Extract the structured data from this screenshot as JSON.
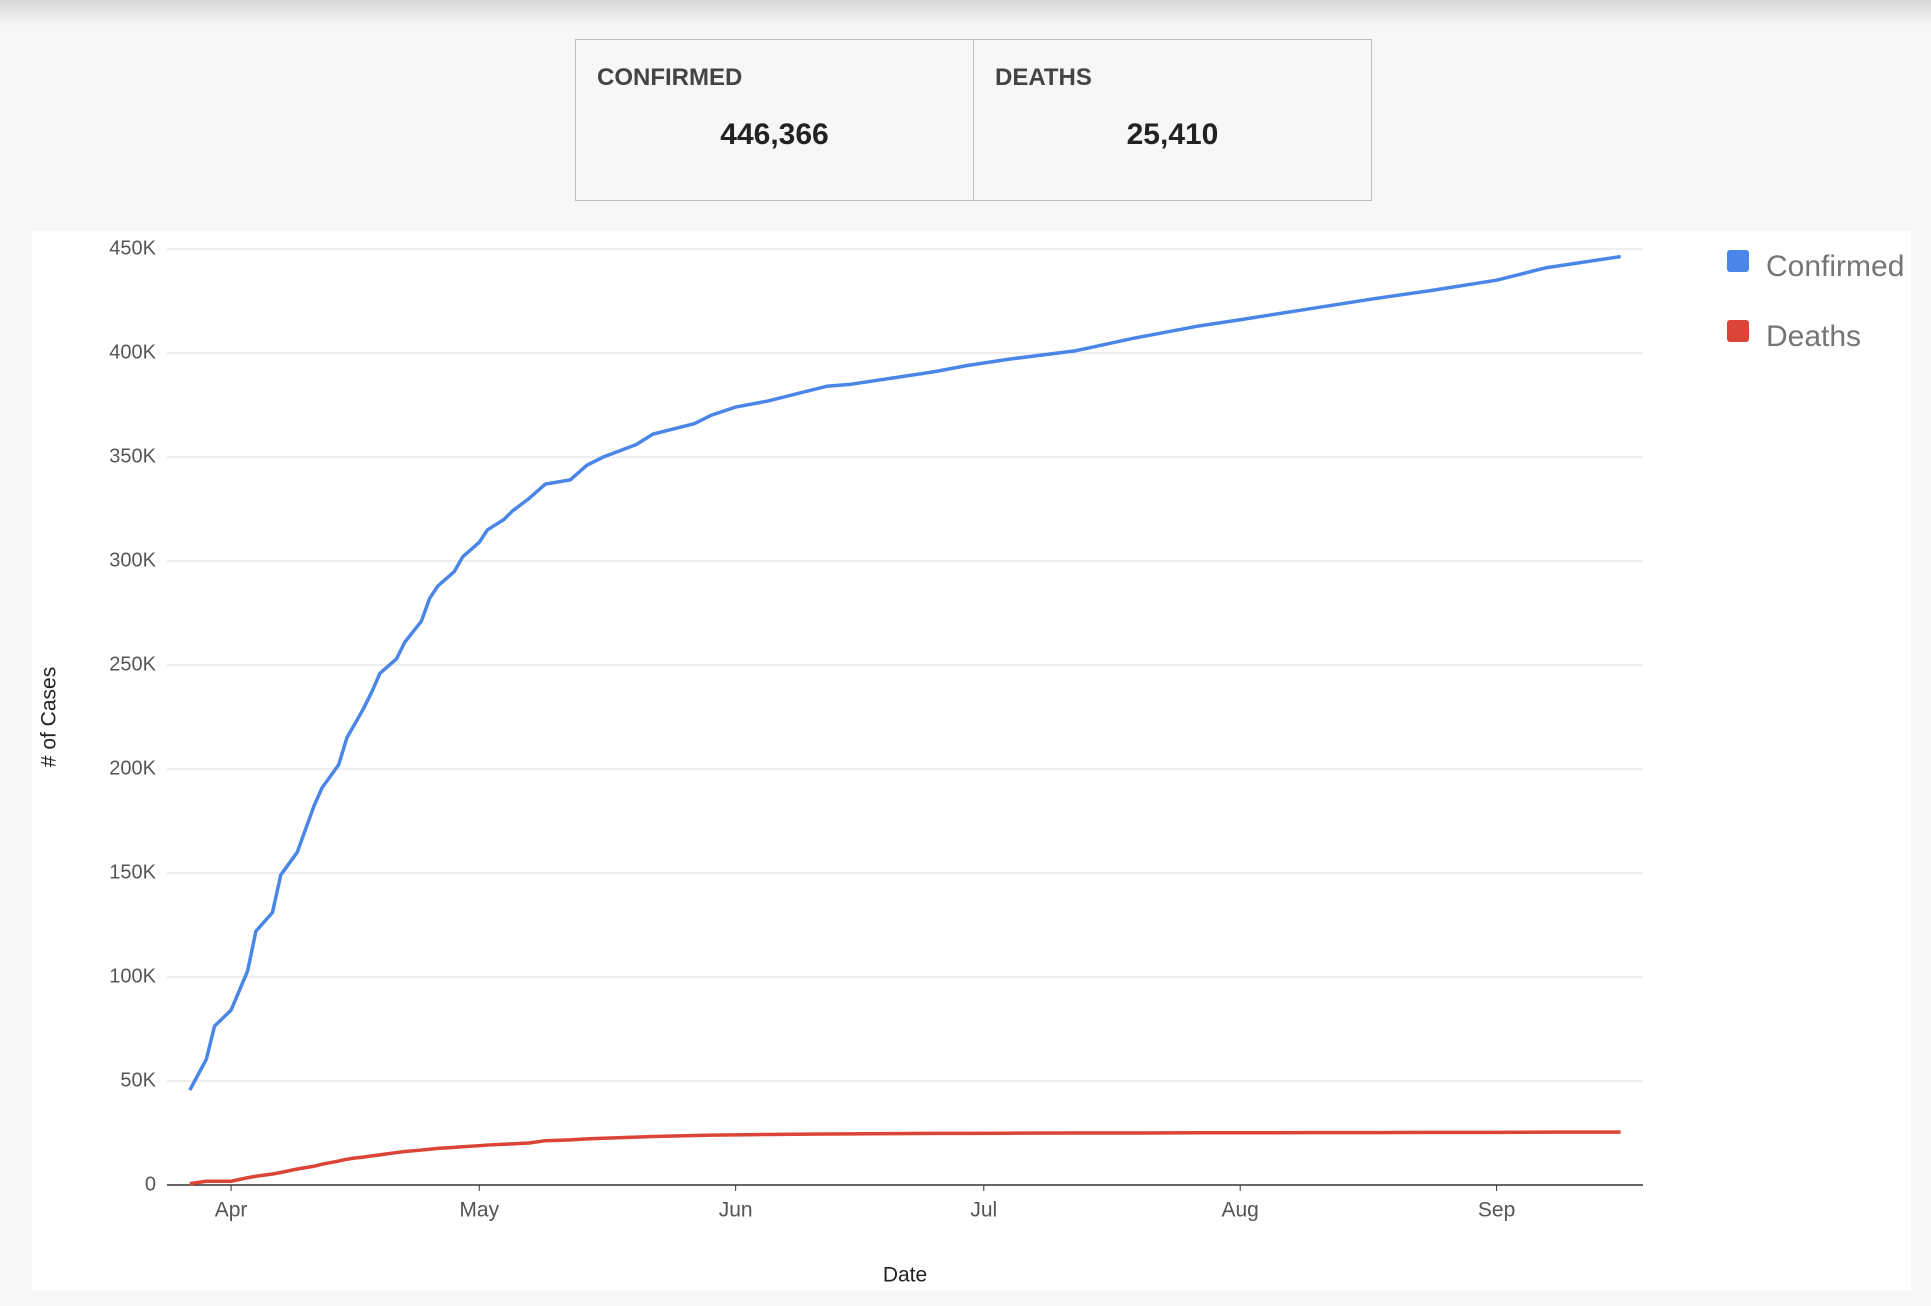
{
  "cards": [
    {
      "label": "CONFIRMED",
      "value": "446,366"
    },
    {
      "label": "DEATHS",
      "value": "25,410"
    }
  ],
  "chart_data": {
    "type": "line",
    "x_label": "Date",
    "y_label": "# of Cases",
    "x": [
      87,
      89,
      90,
      92,
      94,
      95,
      97,
      98,
      100,
      102,
      103,
      105,
      106,
      107,
      108,
      109,
      110,
      112,
      113,
      115,
      116,
      117,
      119,
      120,
      122,
      123,
      125,
      126,
      128,
      130,
      133,
      135,
      137,
      141,
      143,
      145,
      148,
      150,
      153,
      157,
      160,
      164,
      167,
      172,
      177,
      181,
      186,
      194,
      201,
      209,
      214,
      222,
      230,
      237,
      245,
      251,
      260
    ],
    "series": [
      {
        "name": "Confirmed",
        "color": "#4a86e8",
        "values": [
          45600,
          60400,
          76400,
          84100,
          103000,
          122000,
          131000,
          149000,
          160000,
          182000,
          191000,
          202000,
          215000,
          222000,
          229000,
          237000,
          246000,
          253000,
          261000,
          271000,
          282000,
          288000,
          295000,
          302000,
          309000,
          315000,
          320000,
          324000,
          330000,
          337000,
          339000,
          346000,
          350000,
          356000,
          361000,
          363000,
          366000,
          370000,
          374000,
          377000,
          380000,
          384000,
          385000,
          388000,
          391000,
          394000,
          397000,
          401000,
          407000,
          413000,
          416000,
          421000,
          426000,
          430000,
          435000,
          441000,
          446366
        ]
      },
      {
        "name": "Deaths",
        "color": "#db4437",
        "values": [
          600,
          1800,
          1800,
          1800,
          3500,
          4200,
          5300,
          6000,
          7700,
          9000,
          10000,
          11500,
          12400,
          13000,
          13400,
          14000,
          14500,
          15600,
          16100,
          16800,
          17200,
          17600,
          18100,
          18400,
          18900,
          19200,
          19600,
          19800,
          20200,
          21300,
          21700,
          22200,
          22500,
          23000,
          23300,
          23500,
          23800,
          24000,
          24100,
          24300,
          24400,
          24500,
          24600,
          24700,
          24800,
          24800,
          24900,
          25000,
          25000,
          25100,
          25100,
          25200,
          25200,
          25300,
          25300,
          25400,
          25410
        ]
      }
    ],
    "xlim": [
      84.25,
      262.7
    ],
    "xticks": [
      {
        "value": 92,
        "label": "Apr"
      },
      {
        "value": 122,
        "label": "May"
      },
      {
        "value": 153,
        "label": "Jun"
      },
      {
        "value": 183,
        "label": "Jul"
      },
      {
        "value": 214,
        "label": "Aug"
      },
      {
        "value": 245,
        "label": "Sep"
      }
    ],
    "ylim": [
      0,
      450000
    ],
    "yticks": [
      0,
      {
        "value": 50000,
        "label": "50K"
      },
      {
        "value": 100000,
        "label": "100K"
      },
      {
        "value": 150000,
        "label": "150K"
      },
      {
        "value": 200000,
        "label": "200K"
      },
      {
        "value": 250000,
        "label": "250K"
      },
      {
        "value": 300000,
        "label": "300K"
      },
      {
        "value": 350000,
        "label": "350K"
      },
      {
        "value": 400000,
        "label": "400K"
      },
      {
        "value": 450000,
        "label": "450K"
      }
    ],
    "grid": true,
    "legend": "right"
  }
}
